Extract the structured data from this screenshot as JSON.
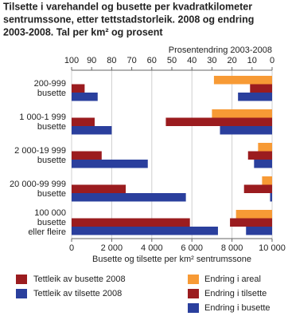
{
  "chart_data": {
    "type": "bar",
    "title": [
      "Tilsette i varehandel og busette per kvadratkilometer",
      "sentrumssone, etter tettstadstorleik. 2008 og endring",
      "2003-2008. Tal per km² og prosent"
    ],
    "categories": [
      [
        "200-999",
        "busette"
      ],
      [
        "1 000-1 999",
        "busette"
      ],
      [
        "2 000-19 999",
        "busette"
      ],
      [
        "20 000-99 999",
        "busette"
      ],
      [
        "100 000",
        "busette",
        "eller fleire"
      ]
    ],
    "x_label": "Busette og tilsette per km² sentrumssone",
    "xlim": [
      0,
      10000
    ],
    "xticks": [
      0,
      {
        "value": 2000,
        "label": "2 000"
      },
      {
        "value": 4000,
        "label": "4 000"
      },
      {
        "value": 6000,
        "label": "6 000"
      },
      {
        "value": 8000,
        "label": "8 000"
      },
      {
        "value": 10000,
        "label": "10 000"
      }
    ],
    "grid": true,
    "series": [
      {
        "name": "Tettleik av busette 2008",
        "color": "#9b1c1f",
        "values": [
          650,
          1150,
          1500,
          2700,
          5900
        ]
      },
      {
        "name": "Tettleik av tilsette 2008",
        "color": "#2a3f9d",
        "values": [
          1300,
          2000,
          3800,
          5700,
          7300
        ]
      }
    ],
    "x2_label": "Prosentendring 2003-2008",
    "x2lim": [
      100,
      0
    ],
    "x2ticks": [
      100,
      90,
      80,
      70,
      60,
      50,
      40,
      30,
      20,
      10,
      0
    ],
    "change_series": [
      {
        "name": "Endring i areal",
        "color": "#f79a35",
        "values": [
          29,
          30,
          7,
          5,
          18
        ]
      },
      {
        "name": "Endring i tilsette",
        "color": "#9b1c1f",
        "values": [
          11,
          53,
          12,
          14,
          21
        ]
      },
      {
        "name": "Endring i busette",
        "color": "#2a3f9d",
        "values": [
          17,
          26,
          9,
          1,
          13
        ]
      }
    ]
  }
}
